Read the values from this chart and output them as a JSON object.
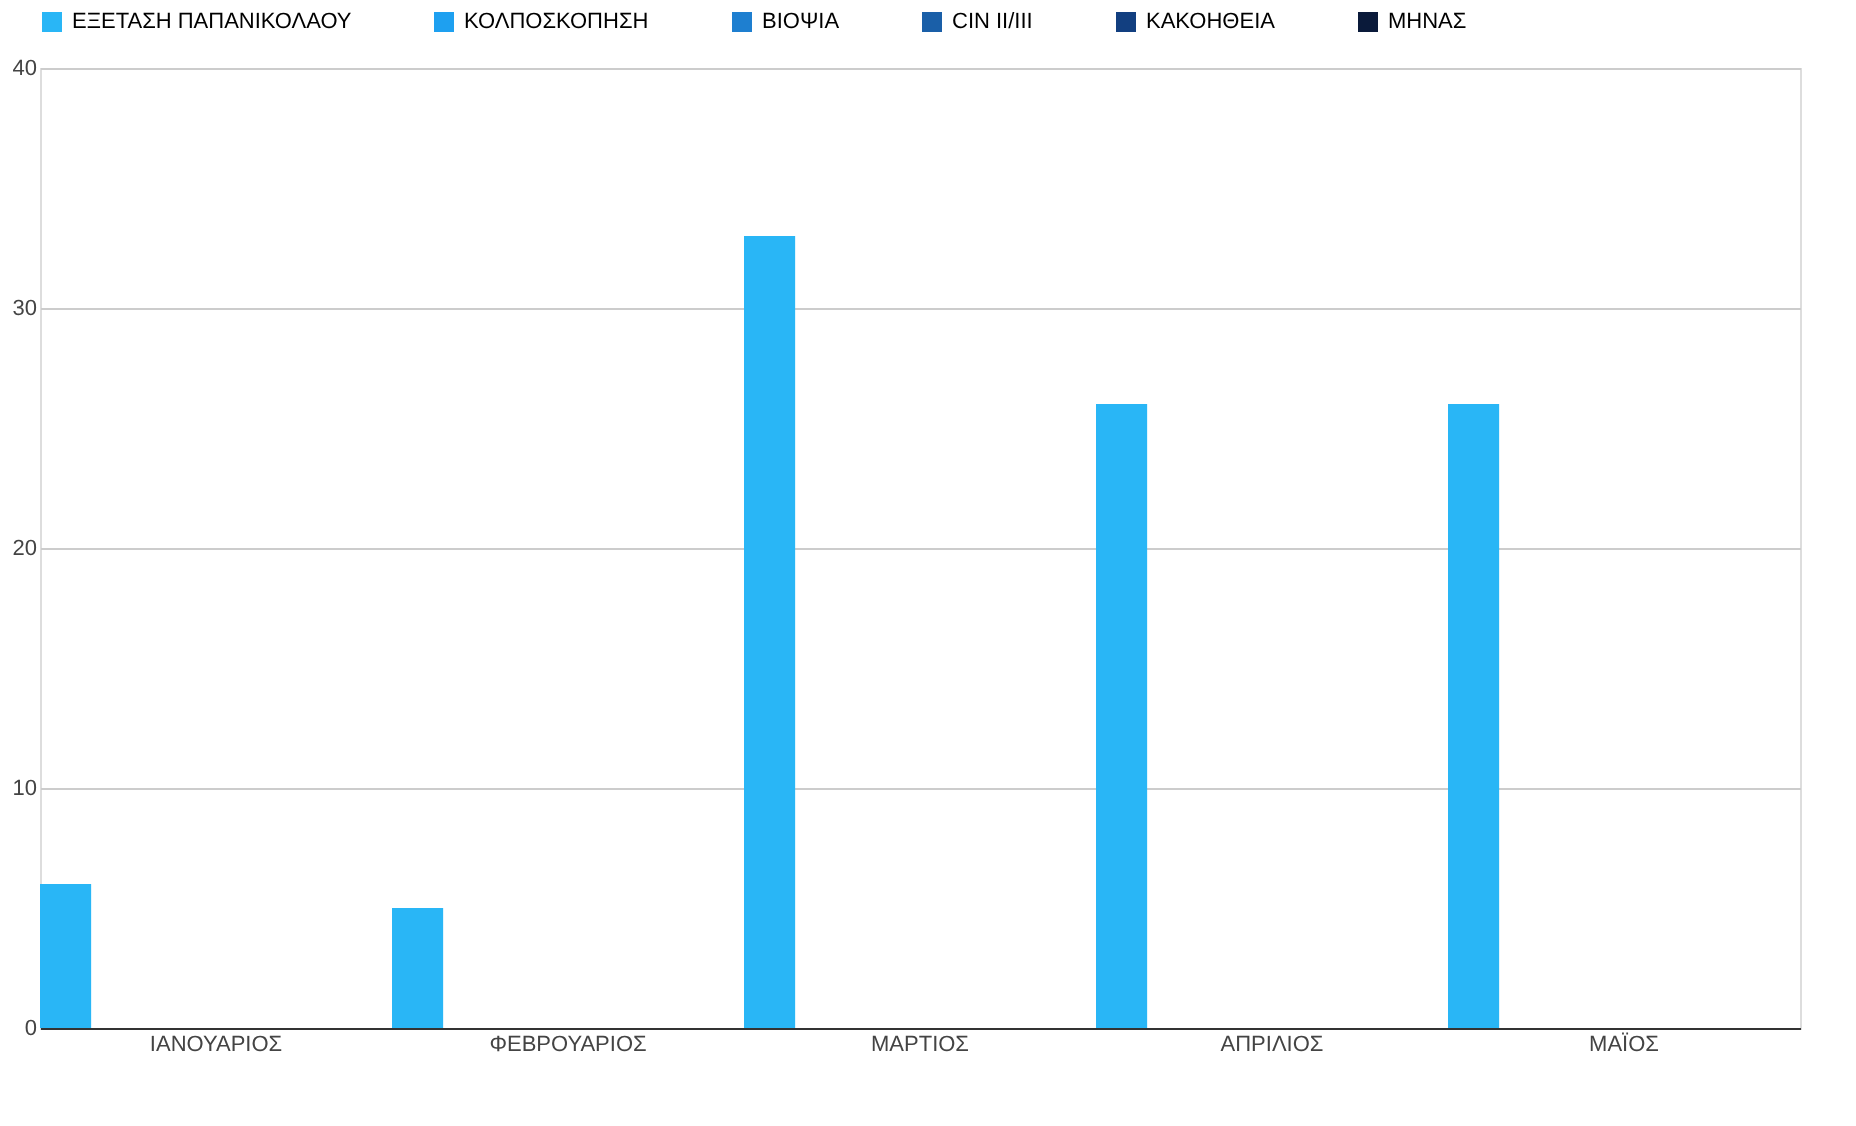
{
  "chart_data": {
    "type": "bar",
    "categories": [
      "ΙΑΝΟΥΑΡΙΟΣ",
      "ΦΕΒΡΟΥΑΡΙΟΣ",
      "ΜΑΡΤΙΟΣ",
      "ΑΠΡΙΛΙΟΣ",
      "ΜΑΪΟΣ"
    ],
    "series": [
      {
        "name": "ΕΞΕΤΑΣΗ ΠΑΠΑΝΙΚΟΛΑΟΥ",
        "color": "#29b6f6",
        "values": [
          6,
          5,
          33,
          26,
          26
        ]
      },
      {
        "name": "ΚΟΛΠΟΣΚΟΠΗΣΗ",
        "color": "#1ea0f0",
        "values": [
          0,
          0,
          0,
          0,
          0
        ]
      },
      {
        "name": "ΒΙΟΨΙΑ",
        "color": "#1e7fd0",
        "values": [
          0,
          0,
          0,
          0,
          0
        ]
      },
      {
        "name": "CIN II/III",
        "color": "#1a5fa8",
        "values": [
          0,
          0,
          0,
          0,
          0
        ]
      },
      {
        "name": "ΚΑΚΟΗΘΕΙΑ",
        "color": "#123f80",
        "values": [
          0,
          0,
          0,
          0,
          0
        ]
      },
      {
        "name": "ΜΗΝΑΣ",
        "color": "#0a1a3a",
        "values": [
          0,
          0,
          0,
          0,
          0
        ]
      }
    ],
    "ylim": [
      0,
      40
    ],
    "yticks": [
      0,
      10,
      20,
      30,
      40
    ],
    "grid": "y",
    "legend": "top"
  }
}
